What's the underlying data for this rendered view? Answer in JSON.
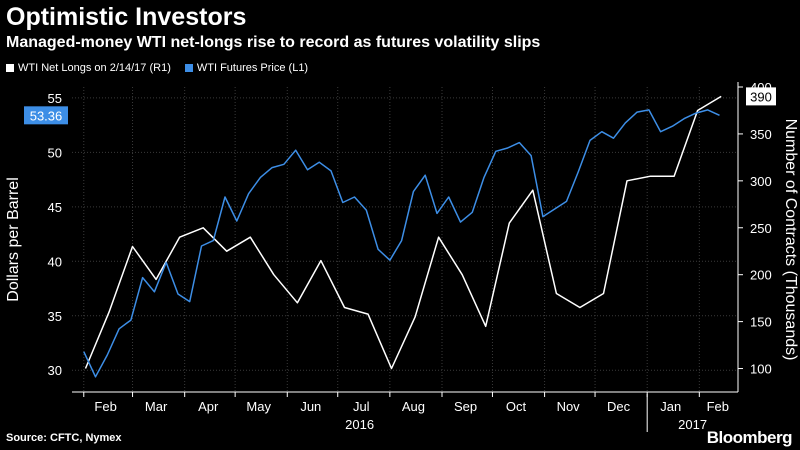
{
  "title": "Optimistic Investors",
  "subtitle": "Managed-money WTI net-longs rise to record as futures volatility slips",
  "source": "Source: CFTC, Nymex",
  "brand": "Bloomberg",
  "chart_data": {
    "type": "line",
    "x_labels": [
      "Feb",
      "Mar",
      "Apr",
      "May",
      "Jun",
      "Jul",
      "Aug",
      "Sep",
      "Oct",
      "Nov",
      "Dec",
      "Jan",
      "Feb"
    ],
    "x_year_labels": [
      "2016",
      "2017"
    ],
    "ylabel_left": "Dollars per Barrel",
    "ylabel_right": "Number of Contracts (Thousands)",
    "ylim_left": [
      28,
      56
    ],
    "ylim_right": [
      75,
      400
    ],
    "yticks_left": [
      30,
      35,
      40,
      45,
      50,
      55
    ],
    "yticks_right": [
      100,
      150,
      200,
      250,
      300,
      350,
      400
    ],
    "grid": true,
    "legend_position": "top-left",
    "last_labels": {
      "price": "53.36",
      "net_longs": "390"
    },
    "colors": {
      "price": "#3d8ee6",
      "net_longs": "#ffffff",
      "background": "#000000",
      "grid": "#3a3a3a"
    },
    "series": [
      {
        "name": "WTI Net Longs on 2/14/17 (R1)",
        "axis": "right",
        "dates": [
          "2016-02-02",
          "2016-02-16",
          "2016-03-01",
          "2016-03-15",
          "2016-03-29",
          "2016-04-12",
          "2016-04-26",
          "2016-05-10",
          "2016-05-24",
          "2016-06-07",
          "2016-06-21",
          "2016-07-05",
          "2016-07-19",
          "2016-08-02",
          "2016-08-16",
          "2016-08-30",
          "2016-09-13",
          "2016-09-27",
          "2016-10-11",
          "2016-10-25",
          "2016-11-08",
          "2016-11-22",
          "2016-12-06",
          "2016-12-20",
          "2017-01-03",
          "2017-01-17",
          "2017-01-31",
          "2017-02-14"
        ],
        "values": [
          100,
          160,
          230,
          195,
          240,
          250,
          225,
          240,
          200,
          170,
          215,
          165,
          158,
          100,
          155,
          240,
          200,
          145,
          255,
          290,
          180,
          165,
          180,
          300,
          305,
          305,
          375,
          390
        ]
      },
      {
        "name": "WTI Futures Price (L1)",
        "axis": "left",
        "dates": [
          "2016-02-01",
          "2016-02-08",
          "2016-02-15",
          "2016-02-22",
          "2016-02-29",
          "2016-03-07",
          "2016-03-14",
          "2016-03-21",
          "2016-03-28",
          "2016-04-04",
          "2016-04-11",
          "2016-04-18",
          "2016-04-25",
          "2016-05-02",
          "2016-05-09",
          "2016-05-16",
          "2016-05-23",
          "2016-05-30",
          "2016-06-06",
          "2016-06-13",
          "2016-06-20",
          "2016-06-27",
          "2016-07-04",
          "2016-07-11",
          "2016-07-18",
          "2016-07-25",
          "2016-08-01",
          "2016-08-08",
          "2016-08-15",
          "2016-08-22",
          "2016-08-29",
          "2016-09-05",
          "2016-09-12",
          "2016-09-19",
          "2016-09-26",
          "2016-10-03",
          "2016-10-10",
          "2016-10-17",
          "2016-10-24",
          "2016-10-31",
          "2016-11-07",
          "2016-11-14",
          "2016-11-21",
          "2016-11-28",
          "2016-12-05",
          "2016-12-12",
          "2016-12-19",
          "2016-12-26",
          "2017-01-02",
          "2017-01-09",
          "2017-01-16",
          "2017-01-23",
          "2017-01-30",
          "2017-02-06",
          "2017-02-13"
        ],
        "values": [
          31.7,
          29.4,
          31.4,
          33.8,
          34.6,
          38.5,
          37.2,
          39.9,
          37.0,
          36.3,
          41.4,
          41.9,
          45.9,
          43.7,
          46.2,
          47.7,
          48.6,
          48.9,
          50.2,
          48.4,
          49.1,
          48.3,
          45.4,
          45.9,
          44.7,
          41.1,
          40.1,
          41.9,
          46.4,
          47.9,
          44.4,
          45.9,
          43.6,
          44.5,
          47.7,
          50.1,
          50.4,
          50.9,
          49.7,
          44.1,
          44.8,
          45.5,
          48.2,
          51.1,
          51.9,
          51.3,
          52.7,
          53.7,
          53.9,
          51.9,
          52.4,
          53.1,
          53.6,
          53.9,
          53.4
        ]
      }
    ]
  }
}
